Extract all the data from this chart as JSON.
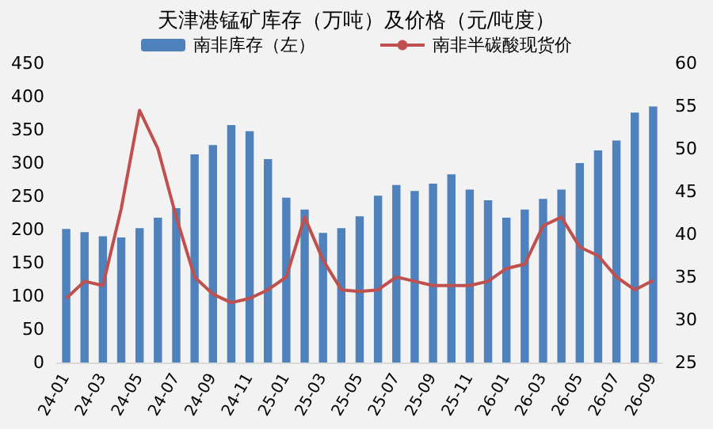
{
  "chart_data": {
    "type": "bar",
    "title": "天津港锰矿库存（万吨）及价格（元/吨度）",
    "categories": [
      "24-01",
      null,
      "24-03",
      null,
      "24-05",
      null,
      "24-07",
      null,
      "24-09",
      null,
      "24-11",
      null,
      "25-01",
      null,
      "25-03",
      null,
      "25-05",
      null,
      "25-07",
      null,
      "25-09",
      null,
      "25-11",
      null,
      "26-01",
      null,
      "26-03",
      null,
      "26-05",
      null,
      "26-07",
      null,
      "26-09"
    ],
    "series": [
      {
        "name": "南非库存（左）",
        "color": "#4f81bd",
        "values": [
          201,
          196,
          190,
          188,
          202,
          218,
          232,
          313,
          327,
          357,
          348,
          306,
          248,
          230,
          195,
          202,
          220,
          251,
          267,
          258,
          269,
          283,
          260,
          244,
          218,
          230,
          246,
          260,
          300,
          319,
          334,
          376,
          385
        ]
      },
      {
        "name": "南非半碳酸现货价",
        "type": "line",
        "axis": "y2",
        "color": "#c0504d",
        "values": [
          32.5,
          34.5,
          34.0,
          43.0,
          54.5,
          50,
          42,
          35,
          33,
          32,
          32.5,
          33.5,
          35,
          42,
          37,
          33.5,
          33.3,
          33.5,
          35,
          34.5,
          34,
          34,
          34,
          34.5,
          36,
          36.5,
          41,
          42,
          38.5,
          37.5,
          35,
          33.5,
          34.6
        ]
      }
    ],
    "ylim": [
      0,
      450
    ],
    "yticks": [
      0,
      50,
      100,
      150,
      200,
      250,
      300,
      350,
      400,
      450
    ],
    "y2lim": [
      25,
      60
    ],
    "y2ticks": [
      25,
      30,
      35,
      40,
      45,
      50,
      55,
      60
    ],
    "legend": "top",
    "grid": false,
    "marker": "none",
    "line_style": "solid"
  }
}
